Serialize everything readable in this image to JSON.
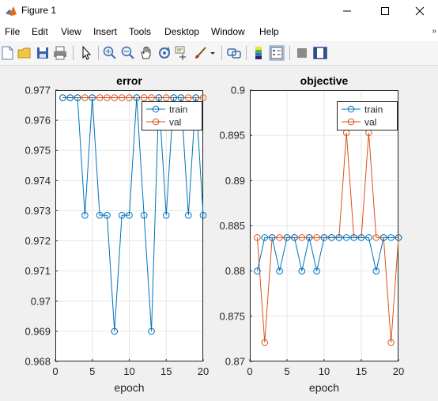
{
  "window": {
    "title": "Figure 1"
  },
  "menu": [
    "File",
    "Edit",
    "View",
    "Insert",
    "Tools",
    "Desktop",
    "Window",
    "Help"
  ],
  "menu_overflow": "»",
  "toolbar_icons": [
    "new-figure-icon",
    "open-file-icon",
    "save-icon",
    "print-icon",
    "pointer-icon",
    "zoom-in-icon",
    "zoom-out-icon",
    "pan-icon",
    "rotate-icon",
    "data-cursor-icon",
    "brush-icon",
    "link-plot-icon",
    "colorbar-icon",
    "legend-icon",
    "hide-plot-tools-icon",
    "show-plot-tools-icon"
  ],
  "chart_data": [
    {
      "type": "line",
      "title": "error",
      "xlabel": "epoch",
      "ylabel": "",
      "xlim": [
        0,
        20
      ],
      "ylim": [
        0.968,
        0.977
      ],
      "xticks": [
        "0",
        "5",
        "10",
        "15",
        "20"
      ],
      "yticks": [
        "0.968",
        "0.969",
        "0.97",
        "0.971",
        "0.972",
        "0.973",
        "0.974",
        "0.975",
        "0.976",
        "0.977"
      ],
      "grid": true,
      "legend_position": "top-right",
      "x": [
        1,
        2,
        3,
        4,
        5,
        6,
        7,
        8,
        9,
        10,
        11,
        12,
        13,
        14,
        15,
        16,
        17,
        18,
        19,
        20
      ],
      "series": [
        {
          "name": "train",
          "color": "#0072BD",
          "values": [
            0.97675,
            0.97675,
            0.97675,
            0.97285,
            0.97675,
            0.97285,
            0.97285,
            0.969,
            0.97285,
            0.97285,
            0.97675,
            0.97285,
            0.969,
            0.97675,
            0.97285,
            0.97675,
            0.97675,
            0.97285,
            0.97675,
            0.97285
          ]
        },
        {
          "name": "val",
          "color": "#D95319",
          "values": [
            0.97675,
            0.97675,
            0.97675,
            0.97675,
            0.97675,
            0.97675,
            0.97675,
            0.97675,
            0.97675,
            0.97675,
            0.97675,
            0.97675,
            0.97675,
            0.97675,
            0.97675,
            0.97675,
            0.97675,
            0.97675,
            0.97675,
            0.97675
          ]
        }
      ]
    },
    {
      "type": "line",
      "title": "objective",
      "xlabel": "epoch",
      "ylabel": "",
      "xlim": [
        0,
        20
      ],
      "ylim": [
        0.87,
        0.9
      ],
      "xticks": [
        "0",
        "5",
        "10",
        "15",
        "20"
      ],
      "yticks": [
        "0.87",
        "0.875",
        "0.88",
        "0.885",
        "0.89",
        "0.895",
        "0.9"
      ],
      "grid": true,
      "legend_position": "top-right",
      "x": [
        1,
        2,
        3,
        4,
        5,
        6,
        7,
        8,
        9,
        10,
        11,
        12,
        13,
        14,
        15,
        16,
        17,
        18,
        19,
        20
      ],
      "series": [
        {
          "name": "train",
          "color": "#0072BD",
          "values": [
            0.88,
            0.8837,
            0.8837,
            0.88,
            0.8837,
            0.8837,
            0.88,
            0.8837,
            0.88,
            0.8837,
            0.8837,
            0.8837,
            0.8837,
            0.8837,
            0.8837,
            0.8837,
            0.88,
            0.8837,
            0.8837,
            0.8837
          ]
        },
        {
          "name": "val",
          "color": "#D95319",
          "values": [
            0.8837,
            0.8721,
            0.8837,
            0.8837,
            0.8837,
            0.8837,
            0.8837,
            0.8837,
            0.8837,
            0.8837,
            0.8837,
            0.8837,
            0.8953,
            0.8837,
            0.8837,
            0.8953,
            0.8837,
            0.8837,
            0.8721,
            0.8837
          ]
        }
      ]
    }
  ]
}
